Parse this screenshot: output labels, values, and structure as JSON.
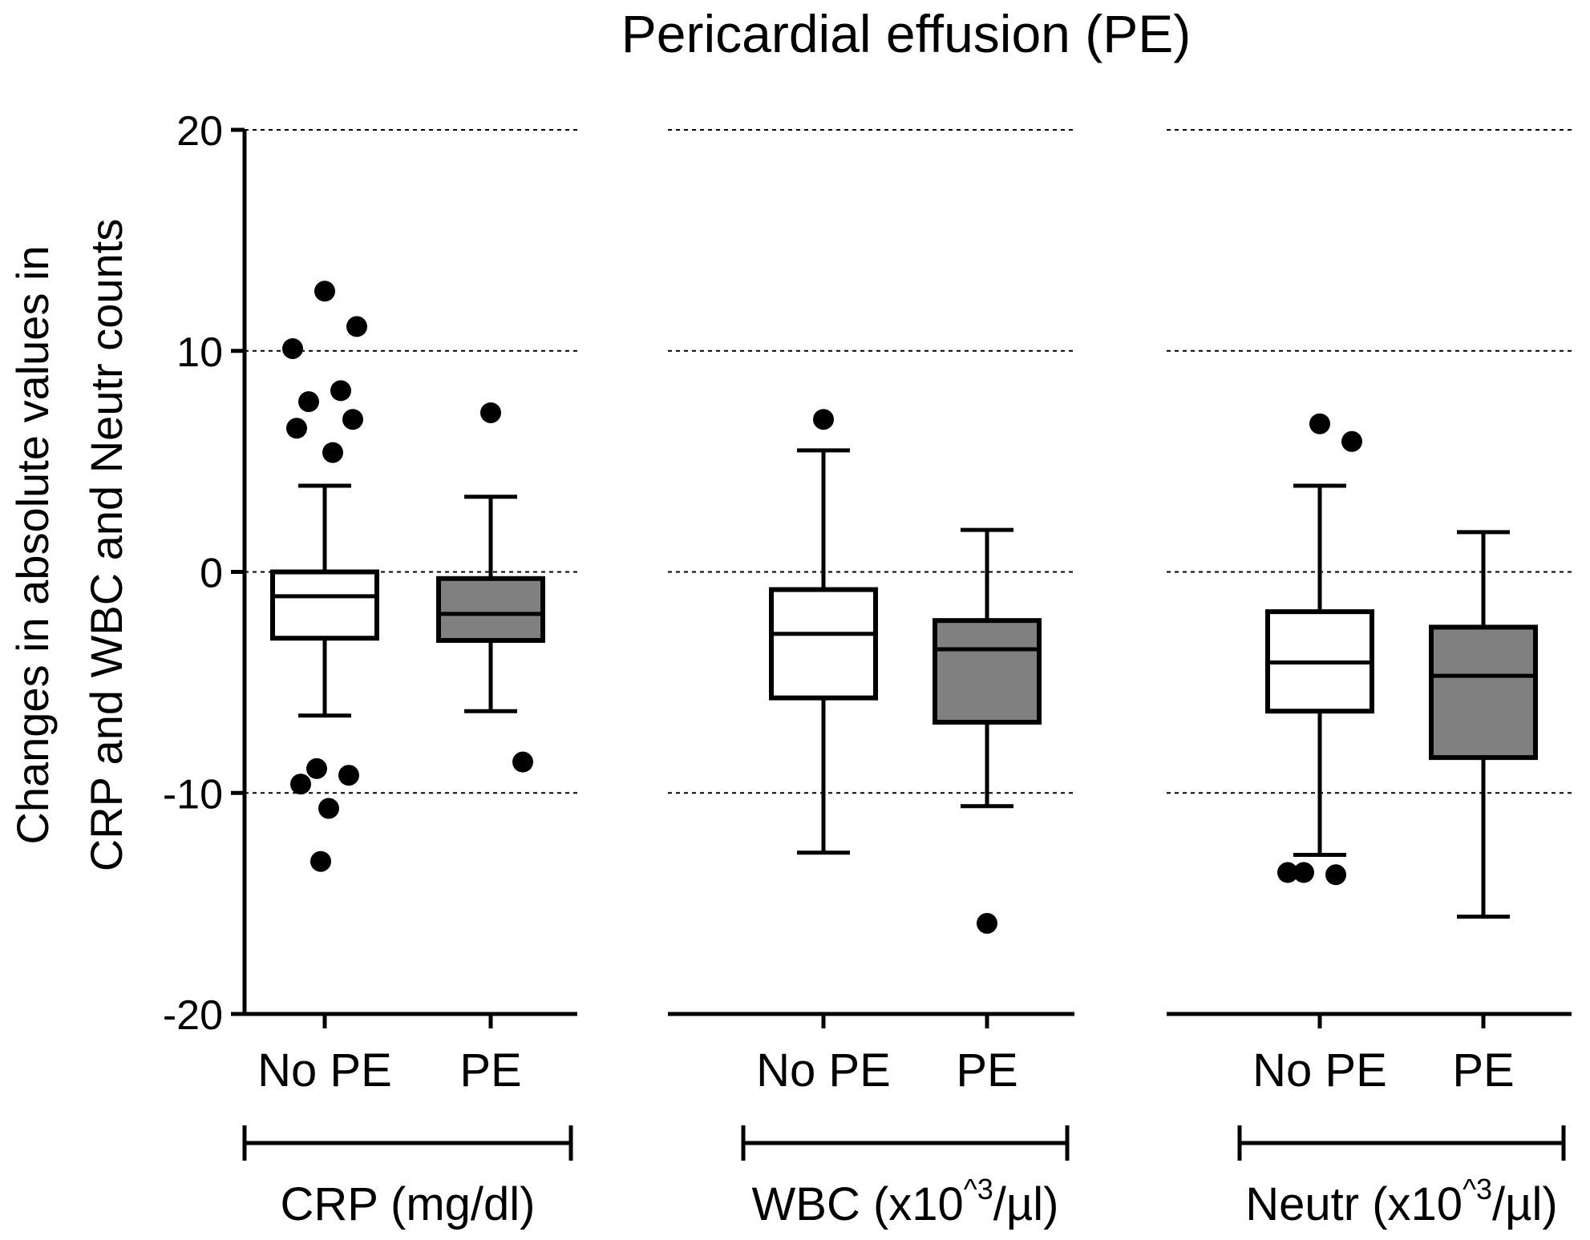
{
  "chart_data": {
    "type": "boxplot",
    "title": "Pericardial effusion (PE)",
    "ylabel_lines": [
      "Changes in absolute values in",
      "CRP and WBC and Neutr counts"
    ],
    "ylim": [
      -20,
      20
    ],
    "yticks": [
      20,
      10,
      0,
      -10,
      -20
    ],
    "ytick_labels": [
      "20",
      "10",
      "0",
      "-10",
      "-20"
    ],
    "grid": "dashed horizontal at 20, 10, 0, -10",
    "panels": [
      {
        "group_label": "CRP (mg/dl)",
        "boxes": [
          {
            "category": "No PE",
            "fill": "#ffffff",
            "q1": -3.0,
            "median": -1.1,
            "q3": 0.0,
            "whisker_low": -6.5,
            "whisker_high": 3.9,
            "outliers": [
              12.7,
              11.1,
              10.1,
              8.2,
              7.7,
              6.9,
              6.5,
              5.4,
              -8.9,
              -9.2,
              -9.6,
              -10.7,
              -13.1
            ]
          },
          {
            "category": "PE",
            "fill": "#808080",
            "q1": -3.1,
            "median": -1.9,
            "q3": -0.3,
            "whisker_low": -6.3,
            "whisker_high": 3.4,
            "outliers": [
              7.2,
              -8.6
            ]
          }
        ]
      },
      {
        "group_label": "WBC (x10^3/µl)",
        "group_label_parts": {
          "pre": "WBC (x10",
          "sup": "^3",
          "post": "/µl)"
        },
        "boxes": [
          {
            "category": "No PE",
            "fill": "#ffffff",
            "q1": -5.7,
            "median": -2.8,
            "q3": -0.8,
            "whisker_low": -12.7,
            "whisker_high": 5.5,
            "outliers": [
              6.9
            ]
          },
          {
            "category": "PE",
            "fill": "#808080",
            "q1": -6.8,
            "median": -3.5,
            "q3": -2.2,
            "whisker_low": -10.6,
            "whisker_high": 1.9,
            "outliers": [
              -15.9
            ]
          }
        ]
      },
      {
        "group_label": "Neutr (x10^3/µl)",
        "group_label_parts": {
          "pre": "Neutr (x10",
          "sup": "^3",
          "post": "/µl)"
        },
        "boxes": [
          {
            "category": "No PE",
            "fill": "#ffffff",
            "q1": -6.3,
            "median": -4.1,
            "q3": -1.8,
            "whisker_low": -12.8,
            "whisker_high": 3.9,
            "outliers": [
              6.7,
              5.9,
              -13.6,
              -13.7,
              -13.6
            ]
          },
          {
            "category": "PE",
            "fill": "#808080",
            "q1": -8.4,
            "median": -4.7,
            "q3": -2.5,
            "whisker_low": -15.6,
            "whisker_high": 1.8,
            "outliers": []
          }
        ]
      }
    ]
  }
}
